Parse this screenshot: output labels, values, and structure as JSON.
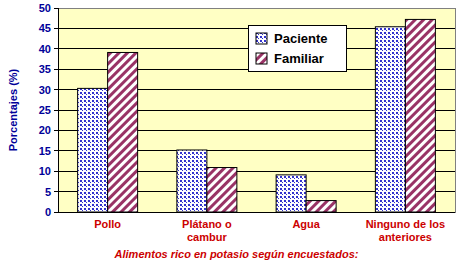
{
  "chart_data": {
    "type": "bar",
    "x_label": "Alimentos rico en potasio según encuestados:",
    "y_label": "Porcentajes (%)",
    "categories": [
      "Pollo",
      "Plátano o cambur",
      "Agua",
      "Ninguno de los anteriores"
    ],
    "series": [
      {
        "name": "Paciente",
        "color": "#3333cc",
        "values": [
          30.3,
          15.2,
          9.1,
          45.4
        ]
      },
      {
        "name": "Familiar",
        "color": "#993366",
        "values": [
          39.1,
          10.9,
          2.8,
          47.2
        ]
      }
    ],
    "ylim": [
      0,
      50
    ],
    "yticks": [
      0,
      5,
      10,
      15,
      20,
      25,
      30,
      35,
      40,
      45,
      50
    ],
    "grid": true,
    "legend": "top-right"
  }
}
